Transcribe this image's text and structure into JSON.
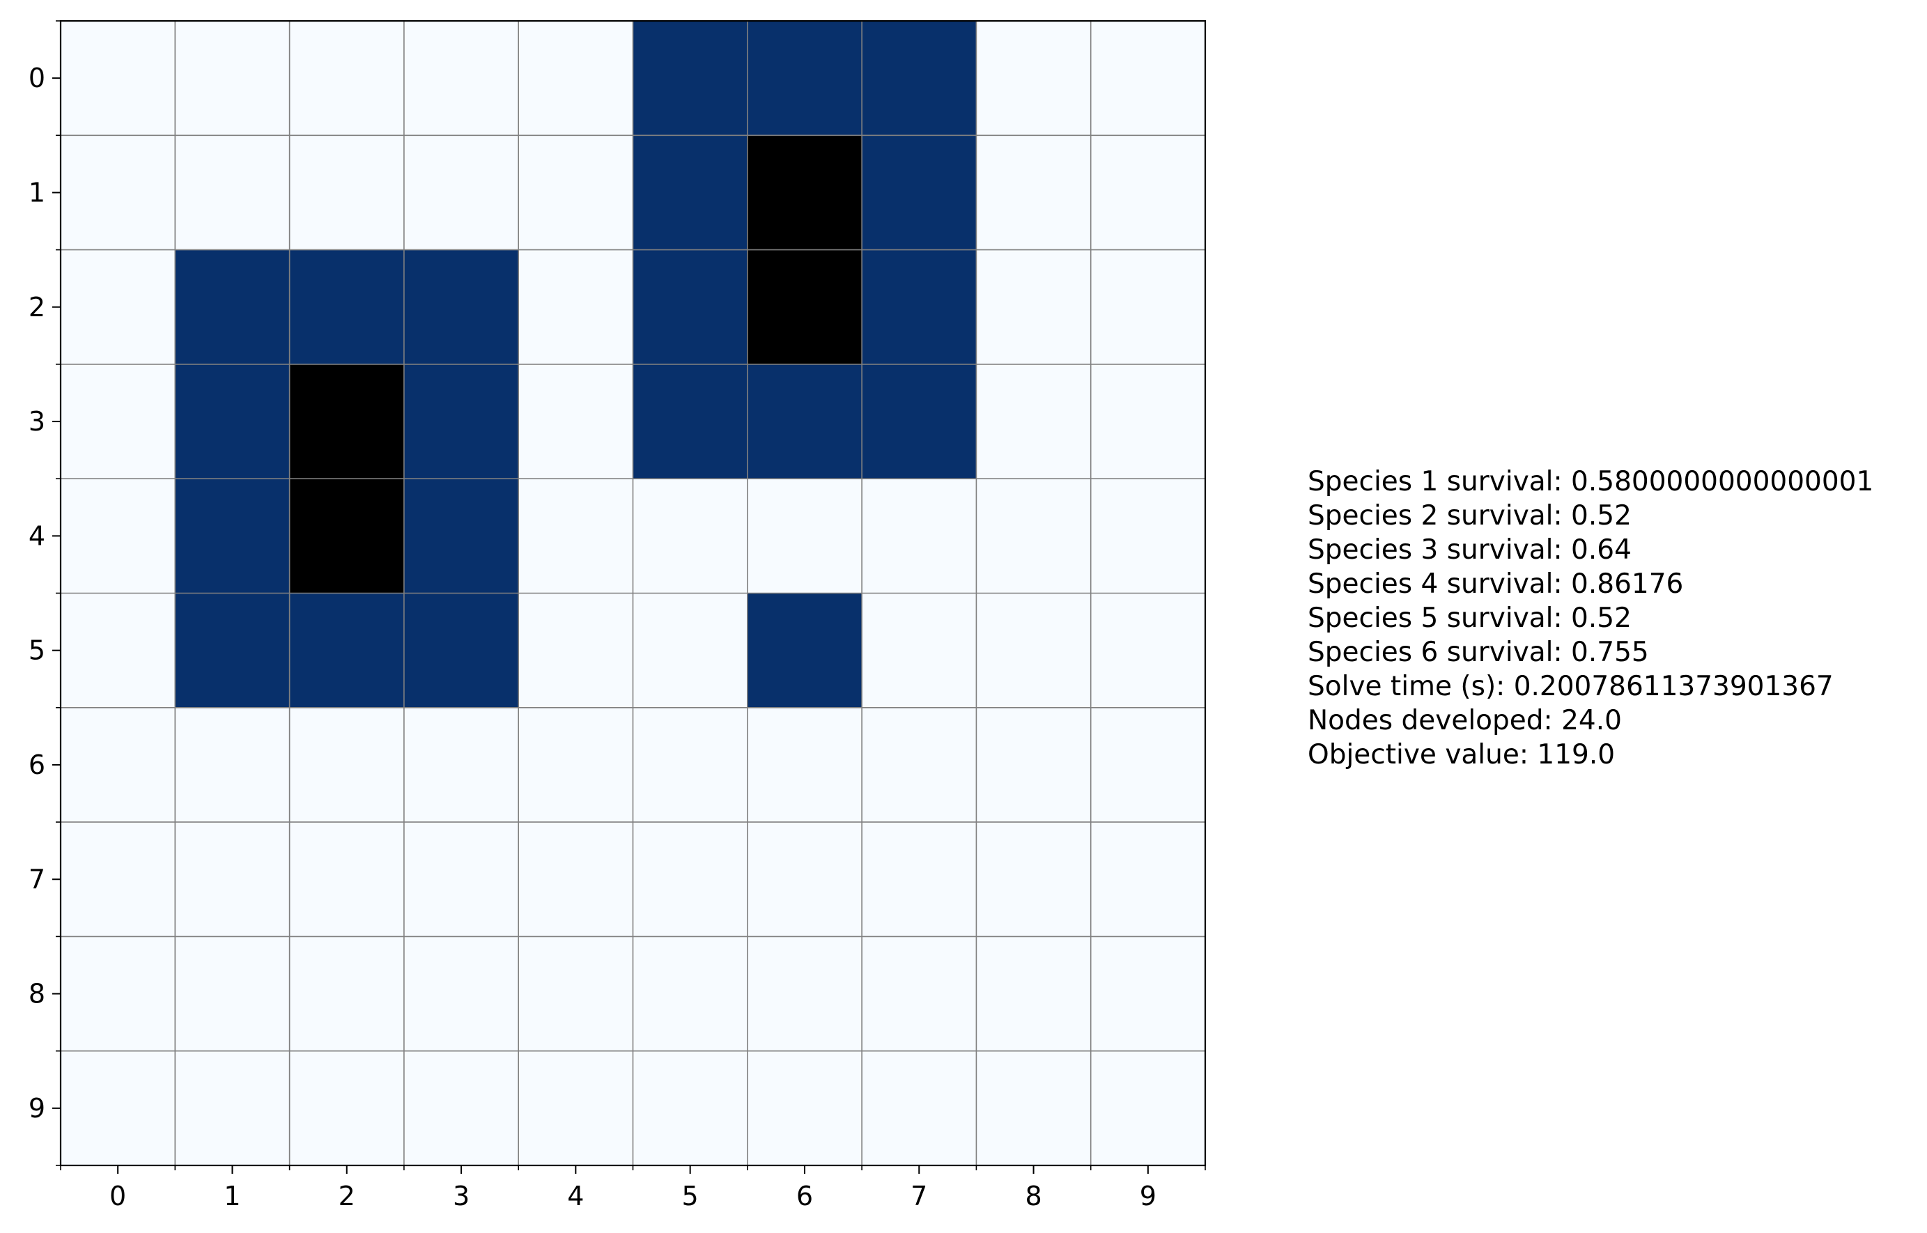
{
  "chart_data": {
    "type": "heatmap",
    "rows": [
      0,
      1,
      2,
      3,
      4,
      5,
      6,
      7,
      8,
      9
    ],
    "cols": [
      0,
      1,
      2,
      3,
      4,
      5,
      6,
      7,
      8,
      9
    ],
    "x_tick_labels": [
      "0",
      "1",
      "2",
      "3",
      "4",
      "5",
      "6",
      "7",
      "8",
      "9"
    ],
    "y_tick_labels": [
      "0",
      "1",
      "2",
      "3",
      "4",
      "5",
      "6",
      "7",
      "8",
      "9"
    ],
    "grid": true,
    "values": [
      [
        0,
        0,
        0,
        0,
        0,
        1,
        1,
        1,
        0,
        0
      ],
      [
        0,
        0,
        0,
        0,
        0,
        1,
        2,
        1,
        0,
        0
      ],
      [
        0,
        1,
        1,
        1,
        0,
        1,
        2,
        1,
        0,
        0
      ],
      [
        0,
        1,
        2,
        1,
        0,
        1,
        1,
        1,
        0,
        0
      ],
      [
        0,
        1,
        2,
        1,
        0,
        0,
        0,
        0,
        0,
        0
      ],
      [
        0,
        1,
        1,
        1,
        0,
        0,
        1,
        0,
        0,
        0
      ],
      [
        0,
        0,
        0,
        0,
        0,
        0,
        0,
        0,
        0,
        0
      ],
      [
        0,
        0,
        0,
        0,
        0,
        0,
        0,
        0,
        0,
        0
      ],
      [
        0,
        0,
        0,
        0,
        0,
        0,
        0,
        0,
        0,
        0
      ],
      [
        0,
        0,
        0,
        0,
        0,
        0,
        0,
        0,
        0,
        0
      ]
    ],
    "colors": [
      "#f7fbff",
      "#08306b",
      "#000000"
    ],
    "grid_color": "#808080",
    "annotations": [
      "Species 1 survival: 0.5800000000000001",
      "Species 2 survival: 0.52",
      "Species 3 survival: 0.64",
      "Species 4 survival: 0.86176",
      "Species 5 survival: 0.52",
      "Species 6 survival: 0.755",
      "Solve time (s): 0.20078611373901367",
      "Nodes developed: 24.0",
      "Objective value: 119.0"
    ]
  }
}
